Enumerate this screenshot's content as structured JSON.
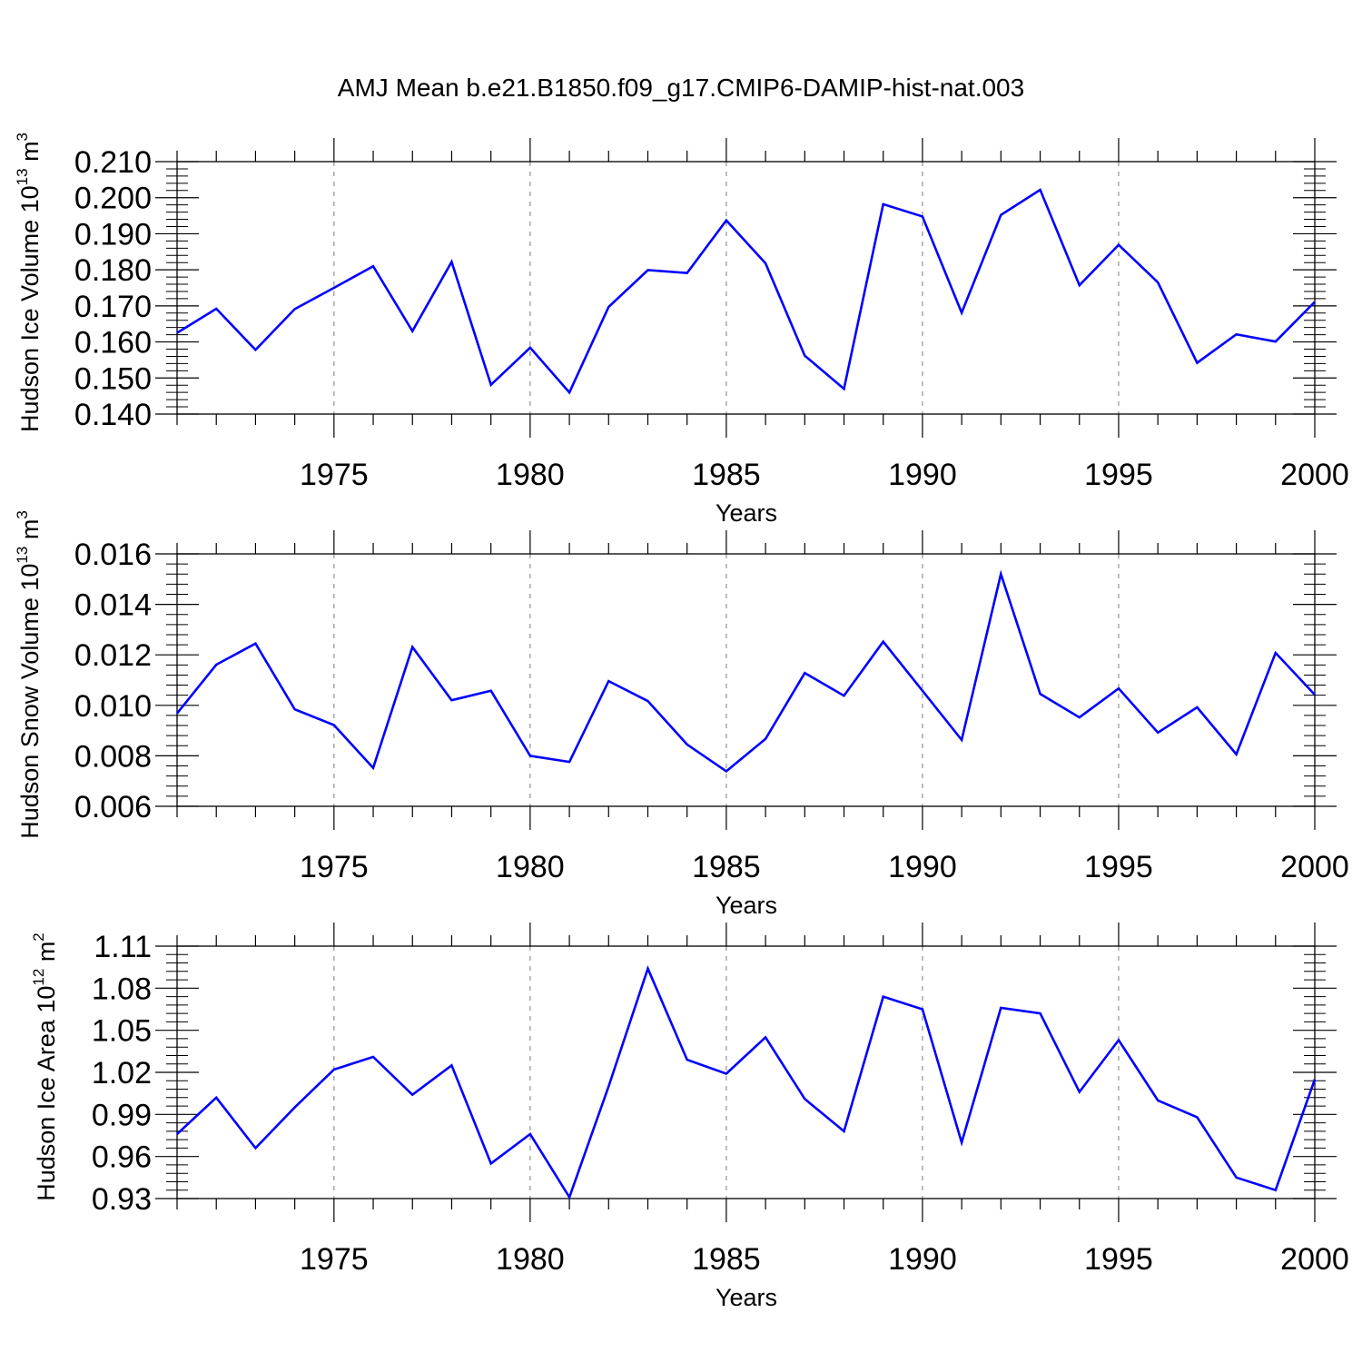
{
  "figure": {
    "title": "AMJ Mean b.e21.B1850.f09_g17.CMIP6-DAMIP-hist-nat.003"
  },
  "chart_data": [
    {
      "type": "line",
      "ylabel": {
        "text": "Hudson Ice Volume 10",
        "exponent": "13",
        "unit": " m",
        "unit_exponent": "3"
      },
      "xlabel": "Years",
      "xlim": [
        1971,
        2000
      ],
      "ylim": [
        0.14,
        0.21
      ],
      "yticks": [
        0.14,
        0.15,
        0.16,
        0.17,
        0.18,
        0.19,
        0.2,
        0.21
      ],
      "ytick_labels": [
        "0.140",
        "0.150",
        "0.160",
        "0.170",
        "0.180",
        "0.190",
        "0.200",
        "0.210"
      ],
      "xticks": [
        1975,
        1980,
        1985,
        1990,
        1995,
        2000
      ],
      "xtick_labels": [
        "1975",
        "1980",
        "1985",
        "1990",
        "1995",
        "2000"
      ],
      "grid": "vertical dashed at major x ticks",
      "color": "#0000ff",
      "x": [
        1971,
        1972,
        1973,
        1974,
        1975,
        1976,
        1977,
        1978,
        1979,
        1980,
        1981,
        1982,
        1983,
        1984,
        1985,
        1986,
        1987,
        1988,
        1989,
        1990,
        1991,
        1992,
        1993,
        1994,
        1995,
        1996,
        1997,
        1998,
        1999,
        2000
      ],
      "y": [
        0.1625,
        0.1692,
        0.1578,
        0.1691,
        0.175,
        0.181,
        0.163,
        0.1822,
        0.1481,
        0.1584,
        0.146,
        0.1697,
        0.1799,
        0.1791,
        0.1937,
        0.1818,
        0.1562,
        0.147,
        0.1982,
        0.1948,
        0.1681,
        0.1952,
        0.2022,
        0.1757,
        0.1869,
        0.1765,
        0.1542,
        0.1621,
        0.1601,
        0.1711
      ]
    },
    {
      "type": "line",
      "ylabel": {
        "text": "Hudson Snow Volume 10",
        "exponent": "13",
        "unit": " m",
        "unit_exponent": "3"
      },
      "xlabel": "Years",
      "xlim": [
        1971,
        2000
      ],
      "ylim": [
        0.006,
        0.016
      ],
      "yticks": [
        0.006,
        0.008,
        0.01,
        0.012,
        0.014,
        0.016
      ],
      "ytick_labels": [
        "0.006",
        "0.008",
        "0.010",
        "0.012",
        "0.014",
        "0.016"
      ],
      "xticks": [
        1975,
        1980,
        1985,
        1990,
        1995,
        2000
      ],
      "xtick_labels": [
        "1975",
        "1980",
        "1985",
        "1990",
        "1995",
        "2000"
      ],
      "grid": "vertical dashed at major x ticks",
      "color": "#0000ff",
      "x": [
        1971,
        1972,
        1973,
        1974,
        1975,
        1976,
        1977,
        1978,
        1979,
        1980,
        1981,
        1982,
        1983,
        1984,
        1985,
        1986,
        1987,
        1988,
        1989,
        1990,
        1991,
        1992,
        1993,
        1994,
        1995,
        1996,
        1997,
        1998,
        1999,
        2000
      ],
      "y": [
        0.00968,
        0.01161,
        0.01245,
        0.00984,
        0.00922,
        0.00752,
        0.01231,
        0.0102,
        0.01058,
        0.008,
        0.00776,
        0.01096,
        0.01017,
        0.00845,
        0.00739,
        0.00867,
        0.01128,
        0.01038,
        0.01252,
        0.01058,
        0.00863,
        0.0152,
        0.01045,
        0.00952,
        0.01067,
        0.00892,
        0.00992,
        0.00806,
        0.01208,
        0.01042
      ]
    },
    {
      "type": "line",
      "ylabel": {
        "text": "Hudson Ice Area 10",
        "exponent": "12",
        "unit": " m",
        "unit_exponent": "2"
      },
      "xlabel": "Years",
      "xlim": [
        1971,
        2000
      ],
      "ylim": [
        0.93,
        1.11
      ],
      "yticks": [
        0.93,
        0.96,
        0.99,
        1.02,
        1.05,
        1.08,
        1.11
      ],
      "ytick_labels": [
        "0.93",
        "0.96",
        "0.99",
        "1.02",
        "1.05",
        "1.08",
        "1.11"
      ],
      "xticks": [
        1975,
        1980,
        1985,
        1990,
        1995,
        2000
      ],
      "xtick_labels": [
        "1975",
        "1980",
        "1985",
        "1990",
        "1995",
        "2000"
      ],
      "grid": "vertical dashed at major x ticks",
      "color": "#0000ff",
      "x": [
        1971,
        1972,
        1973,
        1974,
        1975,
        1976,
        1977,
        1978,
        1979,
        1980,
        1981,
        1982,
        1983,
        1984,
        1985,
        1986,
        1987,
        1988,
        1989,
        1990,
        1991,
        1992,
        1993,
        1994,
        1995,
        1996,
        1997,
        1998,
        1999,
        2000
      ],
      "y": [
        0.976,
        1.002,
        0.966,
        0.995,
        1.022,
        1.031,
        1.004,
        1.025,
        0.955,
        0.976,
        0.931,
        1.01,
        1.094,
        1.029,
        1.019,
        1.045,
        1.001,
        0.978,
        1.074,
        1.065,
        0.97,
        1.066,
        1.062,
        1.006,
        1.043,
        1.0,
        0.988,
        0.945,
        0.936,
        1.015
      ]
    }
  ]
}
